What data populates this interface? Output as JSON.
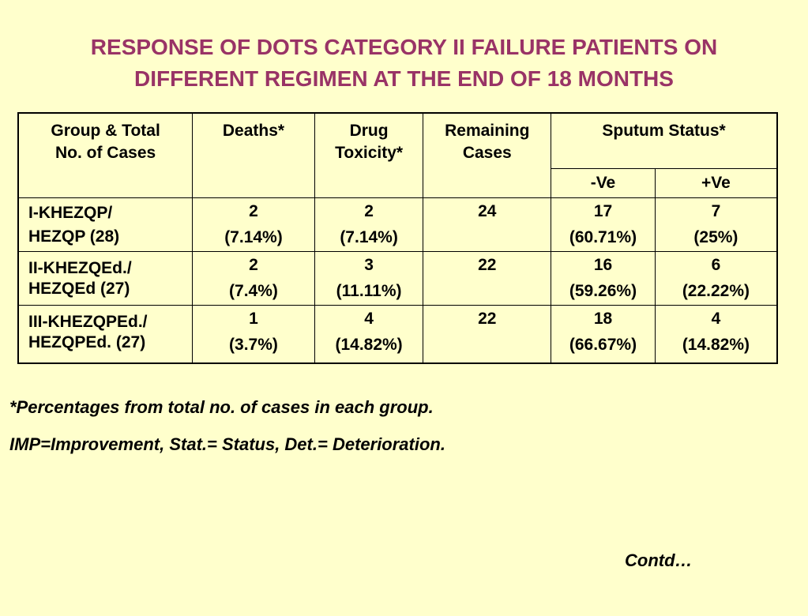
{
  "title": {
    "line1": "RESPONSE OF DOTS CATEGORY II FAILURE PATIENTS ON",
    "line2": "DIFFERENT REGIMEN AT THE END OF 18 MONTHS"
  },
  "table": {
    "headers": {
      "group_line1": "Group & Total",
      "group_line2": "No. of Cases",
      "deaths": "Deaths*",
      "toxicity_line1": "Drug",
      "toxicity_line2": "Toxicity*",
      "remaining_line1": "Remaining",
      "remaining_line2": "Cases",
      "sputum": "Sputum Status*",
      "negative": "-Ve",
      "positive": "+Ve"
    },
    "rows": [
      {
        "group_line1": "I-KHEZQP/",
        "group_line2": "HEZQP (28)",
        "deaths": "2",
        "deaths_pct": "(7.14%)",
        "toxicity": "2",
        "toxicity_pct": "(7.14%)",
        "remaining": "24",
        "negative": "17",
        "negative_pct": "(60.71%)",
        "positive": "7",
        "positive_pct": "(25%)"
      },
      {
        "group_line1": "II-KHEZQEd./",
        "group_line2": "HEZQEd (27)",
        "deaths": "2",
        "deaths_pct": "(7.4%)",
        "toxicity": "3",
        "toxicity_pct": "(11.11%)",
        "remaining": "22",
        "negative": "16",
        "negative_pct": "(59.26%)",
        "positive": "6",
        "positive_pct": "(22.22%)"
      },
      {
        "group_line1": "III-KHEZQPEd./",
        "group_line2": "HEZQPEd. (27)",
        "deaths": "1",
        "deaths_pct": "(3.7%)",
        "toxicity": "4",
        "toxicity_pct": "(14.82%)",
        "remaining": "22",
        "negative": "18",
        "negative_pct": "(66.67%)",
        "positive": "4",
        "positive_pct": "(14.82%)"
      }
    ]
  },
  "footnotes": {
    "percent_note": "*Percentages from total no. of cases in each group.",
    "abbrev_note": "IMP=Improvement, Stat.= Status, Det.= Deterioration."
  },
  "contd": "Contd…",
  "colors": {
    "background": "#ffffcc",
    "title": "#993366"
  }
}
